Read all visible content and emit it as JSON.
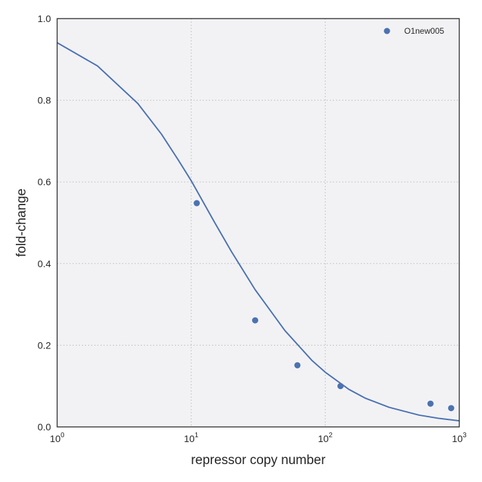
{
  "chart_data": {
    "type": "scatter",
    "title": "",
    "xlabel": "repressor copy number",
    "ylabel": "fold-change",
    "xscale": "log",
    "xlim": [
      1,
      1000
    ],
    "ylim": [
      0.0,
      1.0
    ],
    "grid": true,
    "legend_placement": "top-right",
    "x_ticks": [
      {
        "value": 1,
        "base": "10",
        "exp": "0"
      },
      {
        "value": 10,
        "base": "10",
        "exp": "1"
      },
      {
        "value": 100,
        "base": "10",
        "exp": "2"
      },
      {
        "value": 1000,
        "base": "10",
        "exp": "3"
      }
    ],
    "y_ticks": [
      {
        "value": 0.0,
        "label": "0.0"
      },
      {
        "value": 0.2,
        "label": "0.2"
      },
      {
        "value": 0.4,
        "label": "0.4"
      },
      {
        "value": 0.6,
        "label": "0.6"
      },
      {
        "value": 0.8,
        "label": "0.8"
      },
      {
        "value": 1.0,
        "label": "1.0"
      }
    ],
    "series": [
      {
        "name": "O1new005",
        "kind": "scatter",
        "color": "#4c72b0",
        "x": [
          11,
          30,
          62,
          130,
          610,
          870
        ],
        "y": [
          0.548,
          0.261,
          0.151,
          0.1,
          0.057,
          0.046
        ]
      },
      {
        "kind": "line",
        "color": "#4c72b0",
        "x": [
          1,
          2,
          4,
          6,
          8,
          10,
          15,
          20,
          30,
          50,
          80,
          100,
          150,
          200,
          300,
          500,
          700,
          1000
        ],
        "y": [
          0.941,
          0.884,
          0.792,
          0.717,
          0.654,
          0.603,
          0.5,
          0.429,
          0.336,
          0.236,
          0.162,
          0.134,
          0.092,
          0.07,
          0.048,
          0.029,
          0.021,
          0.015
        ]
      }
    ]
  },
  "colors": {
    "plot_background": "#f2f2f5",
    "axes_edge": "#262626",
    "series_color": "#4c72b0"
  }
}
